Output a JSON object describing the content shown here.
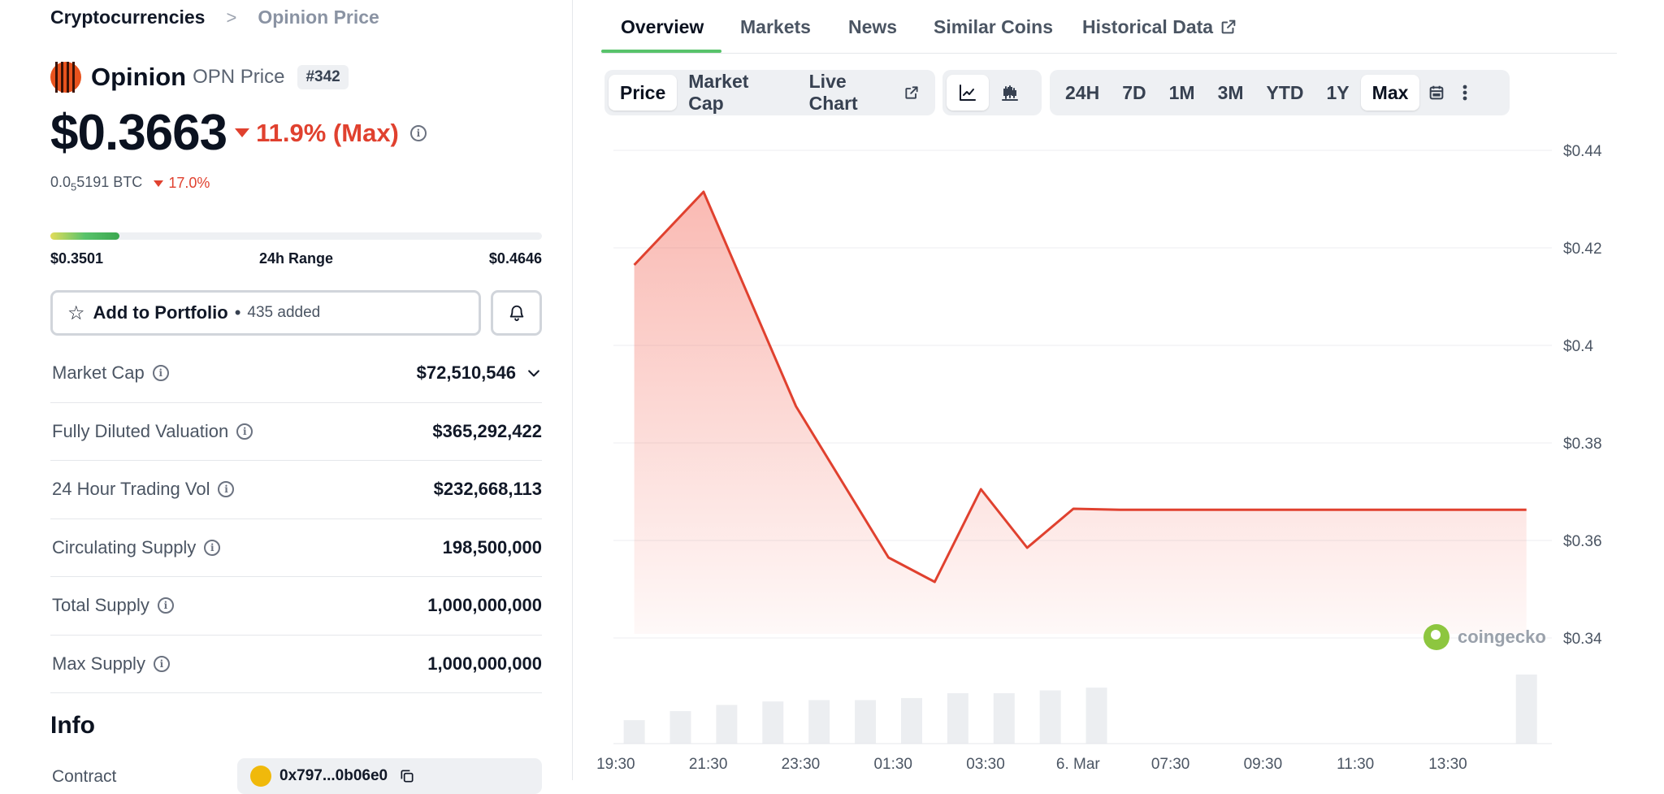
{
  "breadcrumb": {
    "parent": "Cryptocurrencies",
    "separator": ">",
    "current": "Opinion Price"
  },
  "coin": {
    "name": "Opinion",
    "symbol_label": "OPN Price",
    "rank": "#342",
    "price": "$0.3663",
    "change": "11.9% (Max)",
    "btc_price_prefix": "0.0",
    "btc_price_sub": "5",
    "btc_price_suffix": "5191 BTC",
    "btc_change": "17.0%",
    "accent_color": "#e8531e",
    "down_color": "#e0412f"
  },
  "range": {
    "low": "$0.3501",
    "label": "24h Range",
    "high": "$0.4646",
    "fill_fraction": 0.14
  },
  "portfolio": {
    "label": "Add to Portfolio",
    "separator": "•",
    "count": "435 added"
  },
  "stats": [
    {
      "label": "Market Cap",
      "value": "$72,510,546"
    },
    {
      "label": "Fully Diluted Valuation",
      "value": "$365,292,422"
    },
    {
      "label": "24 Hour Trading Vol",
      "value": "$232,668,113"
    },
    {
      "label": "Circulating Supply",
      "value": "198,500,000"
    },
    {
      "label": "Total Supply",
      "value": "1,000,000,000"
    },
    {
      "label": "Max Supply",
      "value": "1,000,000,000"
    }
  ],
  "info": {
    "heading": "Info",
    "contract_label": "Contract",
    "contract_value": "0x797...0b06e0"
  },
  "tabs": [
    {
      "label": "Overview",
      "active": true
    },
    {
      "label": "Markets"
    },
    {
      "label": "News"
    },
    {
      "label": "Similar Coins"
    },
    {
      "label": "Historical Data"
    }
  ],
  "chart_controls": {
    "type_buttons": [
      {
        "label": "Price",
        "active": true
      },
      {
        "label": "Market Cap"
      },
      {
        "label": "Live Chart"
      }
    ],
    "view_icons": [
      "line-chart-icon",
      "candlestick-chart-icon"
    ],
    "ranges": [
      {
        "label": "24H"
      },
      {
        "label": "7D"
      },
      {
        "label": "1M"
      },
      {
        "label": "3M"
      },
      {
        "label": "YTD"
      },
      {
        "label": "1Y"
      },
      {
        "label": "Max",
        "active": true
      }
    ],
    "extra_icons": [
      "calendar-icon",
      "more-vertical-icon"
    ]
  },
  "watermark": "coingecko",
  "chart_data": {
    "type": "line",
    "title": "",
    "xlabel": "",
    "ylabel": "",
    "y_ticks": [
      "$0.44",
      "$0.42",
      "$0.4",
      "$0.38",
      "$0.36",
      "$0.34"
    ],
    "y_tick_values": [
      0.44,
      0.42,
      0.4,
      0.38,
      0.36,
      0.34
    ],
    "ylim": [
      0.34,
      0.44
    ],
    "x_ticks": [
      "19:30",
      "21:30",
      "23:30",
      "01:30",
      "03:30",
      "6. Mar",
      "07:30",
      "09:30",
      "11:30",
      "13:30"
    ],
    "x_tick_values": [
      0.5,
      2.5,
      4.5,
      6.5,
      8.5,
      10.5,
      12.5,
      14.5,
      16.5,
      18.5
    ],
    "x_unit": "hours since 19:00 on 5 Mar",
    "xlim": [
      0.45,
      20.75
    ],
    "grid": true,
    "line_color": "#e0412f",
    "series": [
      {
        "x": [
          0.9,
          2.4,
          4.4,
          6.4,
          7.4,
          8.4,
          9.4,
          10.4,
          11.4,
          20.2
        ],
        "values": [
          0.4165,
          0.4315,
          0.3875,
          0.3565,
          0.3515,
          0.3705,
          0.3585,
          0.3665,
          0.3663,
          0.3663
        ]
      }
    ],
    "volume": {
      "x": [
        0.9,
        1.9,
        2.9,
        3.9,
        4.9,
        5.9,
        6.9,
        7.9,
        8.9,
        9.9,
        10.9,
        20.2
      ],
      "relative_values": [
        0.34,
        0.47,
        0.56,
        0.61,
        0.63,
        0.63,
        0.66,
        0.73,
        0.73,
        0.77,
        0.81,
        1.0
      ]
    }
  }
}
